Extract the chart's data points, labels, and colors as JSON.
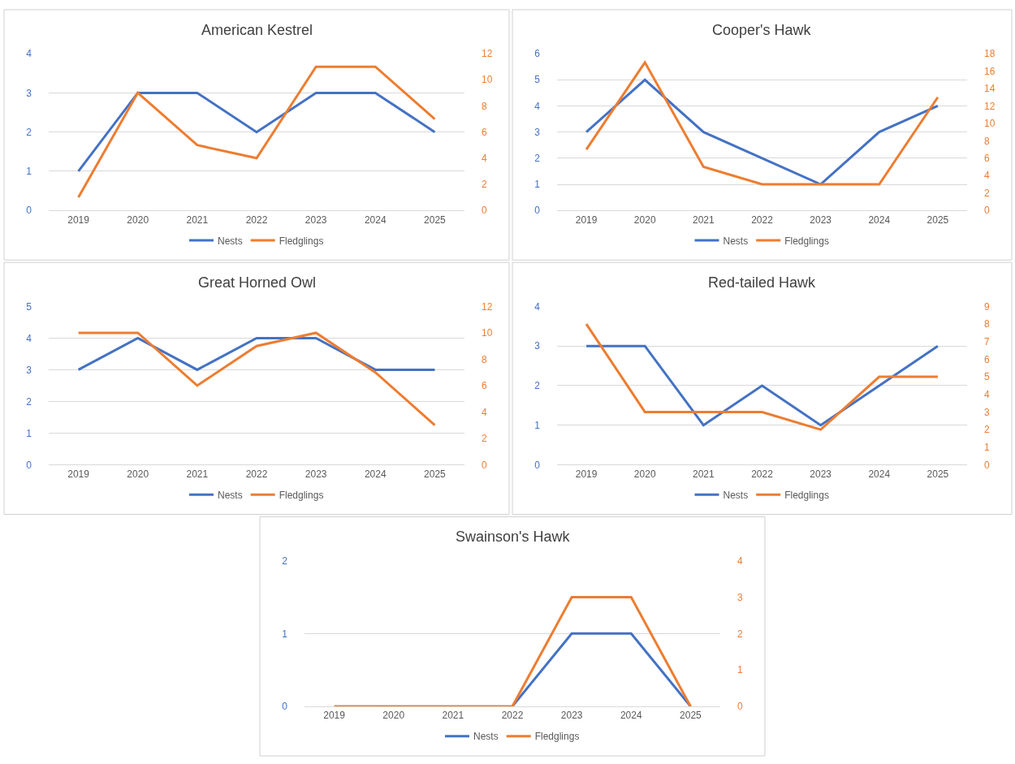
{
  "chart_data": [
    {
      "type": "line",
      "title": "American Kestrel",
      "categories": [
        "2019",
        "2020",
        "2021",
        "2022",
        "2023",
        "2024",
        "2025"
      ],
      "ylim": [
        0,
        4
      ],
      "yticks": [
        0,
        1,
        2,
        3,
        4
      ],
      "y2lim": [
        0,
        12
      ],
      "y2ticks": [
        0,
        2,
        4,
        6,
        8,
        10,
        12
      ],
      "grid": "y",
      "legend": "bottom",
      "series": [
        {
          "name": "Nests",
          "color": "#4472c4",
          "values": [
            1,
            3,
            3,
            2,
            3,
            3,
            2
          ]
        },
        {
          "name": "Fledglings",
          "color": "#ed7d31",
          "axis": "y2",
          "values": [
            1,
            9,
            5,
            4,
            11,
            11,
            7
          ]
        }
      ]
    },
    {
      "type": "line",
      "title": "Cooper's Hawk",
      "categories": [
        "2019",
        "2020",
        "2021",
        "2022",
        "2023",
        "2024",
        "2025"
      ],
      "ylim": [
        0,
        6
      ],
      "yticks": [
        0,
        1,
        2,
        3,
        4,
        5,
        6
      ],
      "y2lim": [
        0,
        18
      ],
      "y2ticks": [
        0,
        2,
        4,
        6,
        8,
        10,
        12,
        14,
        16,
        18
      ],
      "grid": "y",
      "legend": "bottom",
      "series": [
        {
          "name": "Nests",
          "color": "#4472c4",
          "values": [
            3,
            5,
            3,
            2,
            1,
            3,
            4
          ]
        },
        {
          "name": "Fledglings",
          "color": "#ed7d31",
          "axis": "y2",
          "values": [
            7,
            17,
            5,
            3,
            3,
            3,
            13
          ]
        }
      ]
    },
    {
      "type": "line",
      "title": "Great Horned Owl",
      "categories": [
        "2019",
        "2020",
        "2021",
        "2022",
        "2023",
        "2024",
        "2025"
      ],
      "ylim": [
        0,
        5
      ],
      "yticks": [
        0,
        1,
        2,
        3,
        4,
        5
      ],
      "y2lim": [
        0,
        12
      ],
      "y2ticks": [
        0,
        2,
        4,
        6,
        8,
        10,
        12
      ],
      "grid": "y",
      "legend": "bottom",
      "series": [
        {
          "name": "Nests",
          "color": "#4472c4",
          "values": [
            3,
            4,
            3,
            4,
            4,
            3,
            3
          ]
        },
        {
          "name": "Fledglings",
          "color": "#ed7d31",
          "axis": "y2",
          "values": [
            10,
            10,
            6,
            9,
            10,
            7,
            3
          ]
        }
      ]
    },
    {
      "type": "line",
      "title": "Red-tailed Hawk",
      "categories": [
        "2019",
        "2020",
        "2021",
        "2022",
        "2023",
        "2024",
        "2025"
      ],
      "ylim": [
        0,
        4
      ],
      "yticks": [
        0,
        1,
        2,
        3,
        4
      ],
      "y2lim": [
        0,
        9
      ],
      "y2ticks": [
        0,
        1,
        2,
        3,
        4,
        5,
        6,
        7,
        8,
        9
      ],
      "grid": "y",
      "legend": "bottom",
      "series": [
        {
          "name": "Nests",
          "color": "#4472c4",
          "values": [
            3,
            3,
            1,
            2,
            1,
            2,
            3
          ]
        },
        {
          "name": "Fledglings",
          "color": "#ed7d31",
          "axis": "y2",
          "values": [
            8,
            3,
            3,
            3,
            2,
            5,
            5
          ]
        }
      ]
    },
    {
      "type": "line",
      "title": "Swainson's Hawk",
      "categories": [
        "2019",
        "2020",
        "2021",
        "2022",
        "2023",
        "2024",
        "2025"
      ],
      "ylim": [
        0,
        2
      ],
      "yticks": [
        0,
        1,
        2
      ],
      "y2lim": [
        0,
        4
      ],
      "y2ticks": [
        0,
        1,
        2,
        3,
        4
      ],
      "grid": "y",
      "legend": "bottom",
      "series": [
        {
          "name": "Nests",
          "color": "#4472c4",
          "values": [
            null,
            null,
            null,
            0,
            1,
            1,
            0
          ]
        },
        {
          "name": "Fledglings",
          "color": "#ed7d31",
          "axis": "y2",
          "values": [
            0,
            0,
            0,
            0,
            3,
            3,
            0
          ]
        }
      ]
    }
  ]
}
